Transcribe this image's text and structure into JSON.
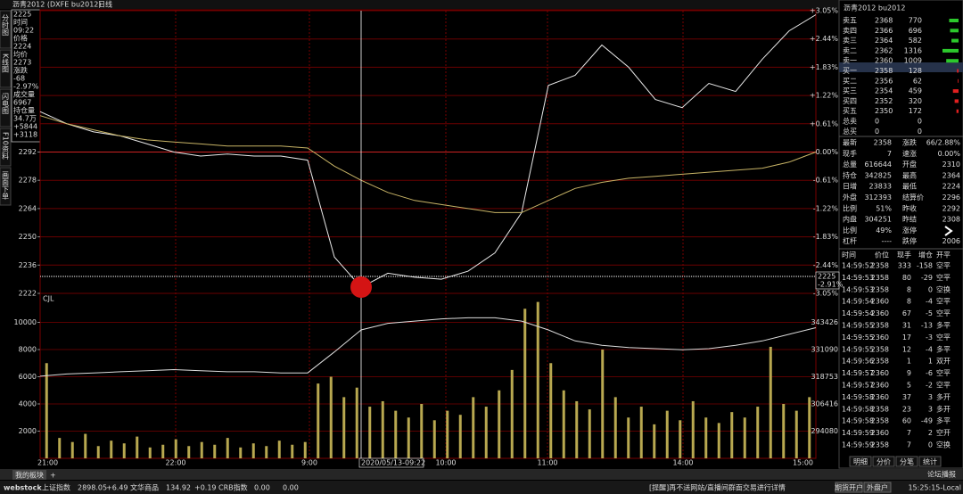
{
  "header": {
    "title": "沥青2012 (DXFE bu2012)",
    "period": "日线"
  },
  "side_tabs": [
    "分时图",
    "K线图",
    "闪电图",
    "F10资料",
    "画面下单"
  ],
  "info_box": [
    "2225",
    "时间",
    "09:22",
    "价格",
    "2224",
    "均价",
    "2273",
    "涨跌",
    "-68",
    "-2.97%",
    "成交量",
    "6967",
    "持仓量",
    "34.7万",
    "+5844",
    "+3118"
  ],
  "chart_data": [
    {
      "type": "line",
      "grid": true,
      "xticks": [
        "21:00",
        "22:00",
        "9:00",
        "10:00",
        "11:00",
        "14:00",
        "15:00"
      ],
      "ylim": [
        2222,
        2362
      ],
      "yticks": [
        2292,
        2278,
        2264,
        2250,
        2236,
        2222
      ],
      "y2lim": [
        -3.05,
        3.05
      ],
      "y2ticks": [
        {
          "value": 3.05,
          "label": "+3.05%"
        },
        {
          "value": 2.44,
          "label": "+2.44%"
        },
        {
          "value": 1.83,
          "label": "+1.83%"
        },
        {
          "value": 1.22,
          "label": "+1.22%"
        },
        {
          "value": 0.61,
          "label": "+0.61%"
        },
        {
          "value": 0,
          "label": "0.00%"
        },
        {
          "value": -0.61,
          "label": "-0.61%"
        },
        {
          "value": -1.22,
          "label": "-1.22%"
        },
        {
          "value": -1.83,
          "label": "-1.83%"
        },
        {
          "value": -2.44,
          "label": "-2.44%"
        },
        {
          "value": -3.05,
          "label": "-3.05%"
        }
      ],
      "series": [
        {
          "color": "#e8e8e8",
          "values": [
            2312,
            2306,
            2302,
            2300,
            2296,
            2292,
            2290,
            2291,
            2290,
            2290,
            2288,
            2240,
            2225,
            2232,
            2230,
            2229,
            2233,
            2242,
            2262,
            2325,
            2330,
            2345,
            2334,
            2318,
            2314,
            2326,
            2322,
            2338,
            2352,
            2360
          ]
        },
        {
          "color": "#c8b466",
          "values": [
            2310,
            2306,
            2303,
            2300,
            2298,
            2297,
            2296,
            2295,
            2295,
            2295,
            2294,
            2285,
            2278,
            2272,
            2268,
            2266,
            2264,
            2262,
            2262,
            2268,
            2274,
            2277,
            2279,
            2280,
            2281,
            2282,
            2283,
            2284,
            2287,
            2292
          ]
        }
      ]
    },
    {
      "type": "bar",
      "label": "CJL",
      "ylim": [
        0,
        12000
      ],
      "yticks": [
        10000,
        8000,
        6000,
        4000,
        2000
      ],
      "y2lim": [
        281743,
        355763
      ],
      "y2ticks": [
        343426,
        331090,
        318753,
        306416,
        294080
      ],
      "series": [
        {
          "color": "#b8a850",
          "values": [
            7000,
            1500,
            1200,
            1800,
            900,
            1300,
            1100,
            1600,
            800,
            1000,
            1400,
            900,
            1200,
            1000,
            1500,
            800,
            1100,
            900,
            1300,
            1000,
            1200,
            5500,
            6000,
            4500,
            5200,
            3800,
            4200,
            3500,
            3000,
            4000,
            2800,
            3500,
            3200,
            4500,
            3800,
            5000,
            6500,
            11000,
            11500,
            7000,
            5000,
            4200,
            3600,
            8000,
            4500,
            3000,
            3800,
            2500,
            3500,
            2800,
            4200,
            3000,
            2600,
            3400,
            3000,
            3800,
            8200,
            4000,
            3500,
            4500
          ]
        },
        {
          "type": "line",
          "axis": "y2",
          "color": "#dddddd",
          "values": [
            319000,
            320000,
            320500,
            321000,
            321500,
            322000,
            321500,
            321000,
            321000,
            320500,
            320500,
            330000,
            340000,
            343000,
            344000,
            345000,
            345500,
            345500,
            344000,
            340000,
            335000,
            333000,
            332000,
            331500,
            331000,
            331500,
            333000,
            335000,
            338000,
            341000
          ]
        }
      ]
    }
  ],
  "cursor": {
    "label": "2020/05/13-09:22",
    "price_tag": "2225",
    "pct_tag": "-2.91%"
  },
  "quote_panel": {
    "title": "沥青2012  bu2012",
    "order_book": [
      {
        "label": "卖五",
        "price": "2368",
        "qty": 770
      },
      {
        "label": "卖四",
        "price": "2366",
        "qty": 696
      },
      {
        "label": "卖三",
        "price": "2364",
        "qty": 582
      },
      {
        "label": "卖二",
        "price": "2362",
        "qty": 1316
      },
      {
        "label": "卖一",
        "price": "2360",
        "qty": 1009
      },
      {
        "label": "买一",
        "price": "2358",
        "qty": 128
      },
      {
        "label": "买二",
        "price": "2356",
        "qty": 62
      },
      {
        "label": "买三",
        "price": "2354",
        "qty": 459
      },
      {
        "label": "买四",
        "price": "2352",
        "qty": 320
      },
      {
        "label": "买五",
        "price": "2350",
        "qty": 172
      },
      {
        "label": "总卖",
        "price": "0",
        "qty": 0
      },
      {
        "label": "总买",
        "price": "0",
        "qty": 0
      }
    ],
    "stats": [
      [
        "最新",
        "2358",
        "涨跌",
        "66/2.88%"
      ],
      [
        "现手",
        "7",
        "速涨",
        "0.00%"
      ],
      [
        "总量",
        "616644",
        "开盘",
        "2310"
      ],
      [
        "持仓",
        "342825",
        "最高",
        "2364"
      ],
      [
        "日增",
        "23833",
        "最低",
        "2224"
      ],
      [
        "外盘",
        "312393",
        "结算价",
        "2296"
      ],
      [
        "比例",
        "51%",
        "昨收",
        "2292"
      ],
      [
        "内盘",
        "304251",
        "昨结",
        "2308"
      ],
      [
        "比例",
        "49%",
        "涨停"
      ],
      [
        "杠杆",
        "----",
        "跌停",
        "2006"
      ]
    ],
    "trades_header": [
      "时间",
      "价位",
      "现手",
      "增仓",
      "开平"
    ],
    "trades": [
      [
        "14:59:52",
        "2358",
        "333",
        "-158",
        "空平"
      ],
      [
        "14:59:53",
        "2358",
        "80",
        "-29",
        "空平"
      ],
      [
        "14:59:53",
        "2358",
        "8",
        "0",
        "空换"
      ],
      [
        "14:59:54",
        "2360",
        "8",
        "-4",
        "空平"
      ],
      [
        "14:59:54",
        "2360",
        "67",
        "-5",
        "空平"
      ],
      [
        "14:59:55",
        "2358",
        "31",
        "-13",
        "多平"
      ],
      [
        "14:59:55",
        "2360",
        "17",
        "-3",
        "空平"
      ],
      [
        "14:59:55",
        "2358",
        "12",
        "-4",
        "多平"
      ],
      [
        "14:59:56",
        "2358",
        "1",
        "1",
        "双开"
      ],
      [
        "14:59:57",
        "2360",
        "9",
        "-6",
        "空平"
      ],
      [
        "14:59:57",
        "2360",
        "5",
        "-2",
        "空平"
      ],
      [
        "14:59:58",
        "2360",
        "37",
        "3",
        "多开"
      ],
      [
        "14:59:58",
        "2358",
        "23",
        "3",
        "多开"
      ],
      [
        "14:59:58",
        "2358",
        "60",
        "-49",
        "多平"
      ],
      [
        "14:59:59",
        "2360",
        "7",
        "2",
        "空开"
      ],
      [
        "14:59:59",
        "2358",
        "7",
        "0",
        "空换"
      ]
    ],
    "tabs": [
      "明细",
      "分价",
      "分笔",
      "统计"
    ]
  },
  "status_bar": {
    "tab": "我的板块",
    "add": "+",
    "logo": "webstock",
    "indices": [
      [
        "上证指数",
        "2898.05",
        "+6.49"
      ],
      [
        "文华商品",
        "134.92",
        "+0.19"
      ],
      [
        "CRB指数",
        "0.00",
        "0.00"
      ]
    ],
    "notice": "[提醒]再不送网站/直播间群面交易进行详情",
    "buttons": [
      "期货开户",
      "外盘户"
    ],
    "forum": "论坛播报",
    "clock": "15:25:15-Local"
  }
}
